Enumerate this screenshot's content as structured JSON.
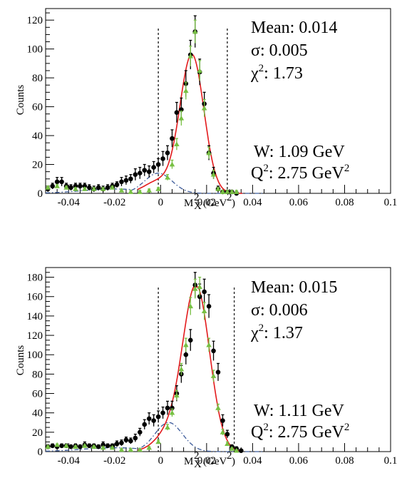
{
  "chart_data": [
    {
      "type": "scatter",
      "xlabel": "M_X^2 (GeV^2)",
      "ylabel": "Counts",
      "xlim": [
        -0.05,
        0.1
      ],
      "ylim": [
        0,
        128
      ],
      "x_ticks": [
        "-0.04",
        "-0.02",
        "0",
        "0.02",
        "0.04",
        "0.06",
        "0.08",
        "0.1"
      ],
      "y_ticks": [
        "0",
        "20",
        "40",
        "60",
        "80",
        "100",
        "120"
      ],
      "cut_lines_x": [
        -0.001,
        0.029
      ],
      "stats": {
        "mean_label": "Mean:",
        "mean_value": "0.014",
        "sigma_label": "σ:",
        "sigma_value": "0.005",
        "chi_label": "χ",
        "chi_value": "1.73",
        "w_label": "W:",
        "w_value": "1.09 GeV",
        "q_label": "Q",
        "q_value": "2.75 GeV"
      },
      "series": [
        {
          "marker": "circle",
          "color": "#000000",
          "x": [
            -0.049,
            -0.047,
            -0.045,
            -0.043,
            -0.041,
            -0.039,
            -0.037,
            -0.035,
            -0.033,
            -0.031,
            -0.029,
            -0.027,
            -0.025,
            -0.023,
            -0.021,
            -0.019,
            -0.017,
            -0.015,
            -0.013,
            -0.011,
            -0.009,
            -0.007,
            -0.005,
            -0.003,
            -0.001,
            0.001,
            0.003,
            0.005,
            0.007,
            0.009,
            0.011,
            0.013,
            0.015,
            0.017,
            0.019,
            0.021,
            0.023,
            0.025,
            0.027,
            0.029,
            0.031,
            0.033
          ],
          "y": [
            3,
            5,
            8,
            8,
            5,
            4,
            5,
            5,
            5,
            4,
            3,
            4,
            3,
            4,
            5,
            6,
            8,
            9,
            10,
            13,
            14,
            16,
            15,
            18,
            20,
            24,
            28,
            38,
            56,
            58,
            76,
            96,
            112,
            84,
            62,
            28,
            14,
            3,
            1,
            1,
            1,
            0
          ],
          "err": [
            2,
            2,
            3,
            3,
            2,
            2,
            2,
            2,
            2,
            2,
            2,
            2,
            2,
            2,
            2,
            2,
            3,
            3,
            3,
            4,
            4,
            4,
            4,
            4,
            4,
            5,
            5,
            6,
            7,
            8,
            9,
            10,
            11,
            9,
            8,
            5,
            4,
            2,
            1,
            1,
            1,
            1
          ]
        },
        {
          "marker": "triangle",
          "color": "#77c043",
          "x": [
            -0.049,
            -0.045,
            -0.041,
            -0.037,
            -0.033,
            -0.029,
            -0.025,
            -0.021,
            -0.017,
            -0.013,
            -0.009,
            -0.005,
            -0.001,
            0.003,
            0.005,
            0.007,
            0.009,
            0.011,
            0.013,
            0.015,
            0.017,
            0.019,
            0.021,
            0.023,
            0.025,
            0.027,
            0.029,
            0.031,
            0.033
          ],
          "y": [
            4,
            5,
            4,
            3,
            3,
            3,
            3,
            4,
            2,
            1,
            1,
            2,
            3,
            11,
            20,
            34,
            52,
            71,
            95,
            112,
            85,
            59,
            28,
            13,
            3,
            1,
            1,
            1,
            1
          ],
          "err": [
            1,
            1,
            1,
            1,
            1,
            1,
            1,
            1,
            1,
            1,
            1,
            1,
            1,
            2,
            3,
            4,
            5,
            6,
            7,
            8,
            7,
            6,
            4,
            3,
            1,
            1,
            1,
            1,
            1
          ]
        }
      ],
      "fit_total": {
        "color": "#e31a1c",
        "style": "solid",
        "peak": 96,
        "mean": 0.0136,
        "sigma": 0.0052
      },
      "fit_background": {
        "color": "#3b5a9a",
        "style": "dashdot",
        "peak": 14,
        "mean": -0.001,
        "sigma": 0.006,
        "tail_level": 3
      }
    },
    {
      "type": "scatter",
      "xlabel": "M_X^2 (GeV^2)",
      "ylabel": "Counts",
      "xlim": [
        -0.05,
        0.1
      ],
      "ylim": [
        0,
        190
      ],
      "x_ticks": [
        "-0.04",
        "-0.02",
        "0",
        "0.02",
        "0.04",
        "0.06",
        "0.08",
        "0.1"
      ],
      "y_ticks": [
        "0",
        "20",
        "40",
        "60",
        "80",
        "100",
        "120",
        "140",
        "160",
        "180"
      ],
      "cut_lines_x": [
        -0.001,
        0.032
      ],
      "stats": {
        "mean_label": "Mean:",
        "mean_value": "0.015",
        "sigma_label": "σ:",
        "sigma_value": "0.006",
        "chi_label": "χ",
        "chi_value": "1.37",
        "w_label": "W:",
        "w_value": "1.11 GeV",
        "q_label": "Q",
        "q_value": "2.75 GeV"
      },
      "series": [
        {
          "marker": "circle",
          "color": "#000000",
          "x": [
            -0.049,
            -0.047,
            -0.045,
            -0.043,
            -0.041,
            -0.039,
            -0.037,
            -0.035,
            -0.033,
            -0.031,
            -0.029,
            -0.027,
            -0.025,
            -0.023,
            -0.021,
            -0.019,
            -0.017,
            -0.015,
            -0.013,
            -0.011,
            -0.009,
            -0.007,
            -0.005,
            -0.003,
            -0.001,
            0.001,
            0.003,
            0.005,
            0.007,
            0.009,
            0.011,
            0.013,
            0.015,
            0.017,
            0.019,
            0.021,
            0.023,
            0.025,
            0.027,
            0.029,
            0.031,
            0.033,
            0.035
          ],
          "y": [
            5,
            6,
            5,
            6,
            6,
            5,
            6,
            5,
            7,
            6,
            6,
            5,
            7,
            6,
            6,
            8,
            9,
            12,
            11,
            14,
            20,
            28,
            34,
            32,
            36,
            40,
            45,
            45,
            60,
            80,
            100,
            115,
            172,
            160,
            165,
            150,
            104,
            82,
            32,
            18,
            5,
            3,
            1
          ],
          "err": [
            2,
            2,
            2,
            2,
            2,
            2,
            2,
            2,
            3,
            2,
            2,
            2,
            3,
            2,
            2,
            3,
            3,
            3,
            3,
            4,
            4,
            5,
            6,
            6,
            6,
            6,
            7,
            7,
            8,
            9,
            10,
            11,
            13,
            13,
            13,
            12,
            10,
            9,
            6,
            4,
            2,
            2,
            1
          ]
        },
        {
          "marker": "triangle",
          "color": "#77c043",
          "x": [
            -0.049,
            -0.045,
            -0.041,
            -0.037,
            -0.033,
            -0.029,
            -0.025,
            -0.021,
            -0.017,
            -0.013,
            -0.009,
            -0.005,
            -0.001,
            0.003,
            0.005,
            0.007,
            0.009,
            0.011,
            0.013,
            0.015,
            0.017,
            0.019,
            0.021,
            0.023,
            0.025,
            0.027,
            0.029,
            0.031,
            0.033
          ],
          "y": [
            5,
            7,
            6,
            5,
            6,
            5,
            4,
            4,
            2,
            2,
            2,
            4,
            10,
            25,
            40,
            58,
            85,
            110,
            150,
            168,
            170,
            145,
            110,
            78,
            45,
            20,
            8,
            3,
            1
          ],
          "err": [
            1,
            1,
            1,
            1,
            1,
            1,
            1,
            1,
            1,
            1,
            1,
            1,
            2,
            3,
            4,
            5,
            6,
            7,
            9,
            10,
            10,
            9,
            7,
            6,
            4,
            3,
            2,
            1,
            1
          ]
        }
      ],
      "fit_total": {
        "color": "#e31a1c",
        "style": "solid",
        "peak": 170,
        "mean": 0.0155,
        "sigma": 0.0058
      },
      "fit_background": {
        "color": "#3b5a9a",
        "style": "dashdot",
        "peak": 30,
        "mean": 0.0035,
        "sigma": 0.006,
        "tail_level": 4
      }
    }
  ]
}
